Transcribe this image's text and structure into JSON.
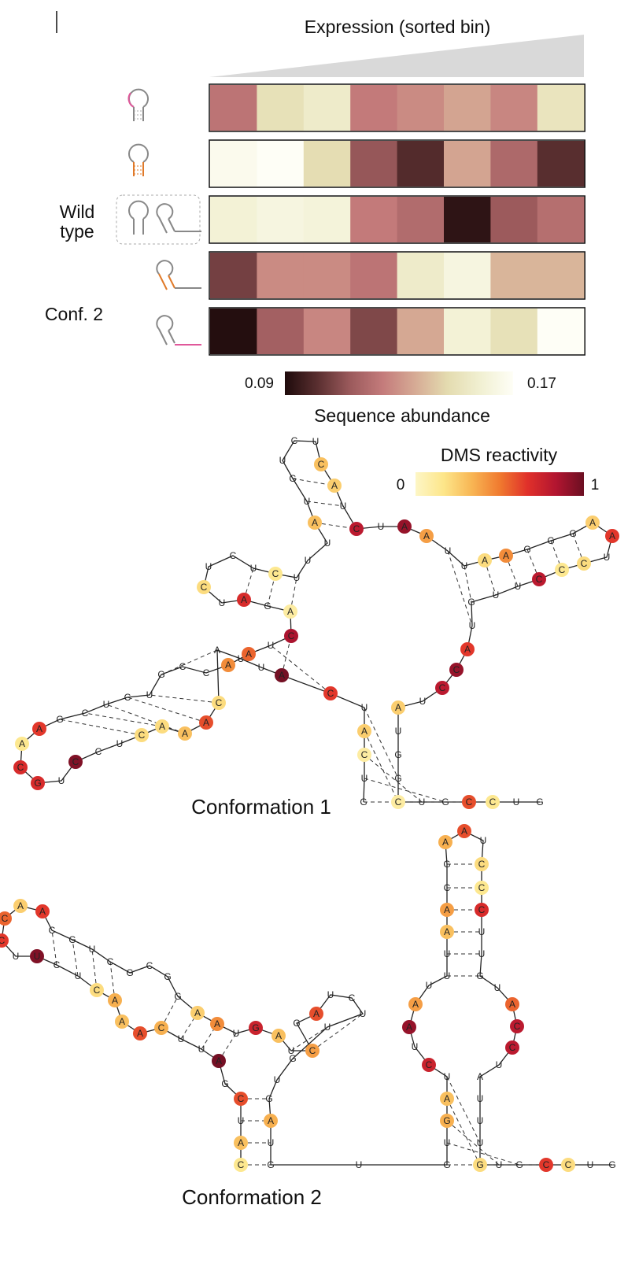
{
  "heatmap": {
    "header": "Expression (sorted bin)",
    "row_labels": {
      "wild_type": "Wild\ntype",
      "conf2": "Conf. 2"
    },
    "rows": [
      {
        "icon": "hairpin-pink-loop-icon",
        "values": [
          0.122,
          0.15,
          0.156,
          0.124,
          0.128,
          0.134,
          0.127,
          0.152
        ]
      },
      {
        "icon": "hairpin-orange-stem-icon",
        "values": [
          0.167,
          0.17,
          0.148,
          0.112,
          0.1,
          0.134,
          0.118,
          0.101
        ]
      },
      {
        "icon": "wild-type-pair-icon",
        "values": [
          0.16,
          0.163,
          0.161,
          0.124,
          0.119,
          0.093,
          0.113,
          0.12
        ]
      },
      {
        "icon": "hairpin-orange-tail-icon",
        "values": [
          0.106,
          0.128,
          0.128,
          0.122,
          0.156,
          0.163,
          0.138,
          0.138
        ]
      },
      {
        "icon": "hairpin-pink-tail-icon",
        "values": [
          0.091,
          0.115,
          0.127,
          0.108,
          0.135,
          0.16,
          0.15,
          0.17
        ]
      }
    ],
    "colorbar": {
      "min_label": "0.09",
      "max_label": "0.17",
      "title": "Sequence abundance",
      "min": 0.09,
      "max": 0.17,
      "stops": [
        "#1f0b0c",
        "#5a2f30",
        "#9b5a5c",
        "#c47b7b",
        "#d6ab95",
        "#e4dcb0",
        "#f1f0d2",
        "#fefef6"
      ]
    }
  },
  "dms": {
    "title": "DMS reactivity",
    "min_label": "0",
    "max_label": "1",
    "stops": [
      "#fdf6c6",
      "#fde68a",
      "#f8b654",
      "#f07a2f",
      "#e0302a",
      "#b21530",
      "#6b0f22"
    ]
  },
  "captions": {
    "conf1": "Conformation 1",
    "conf2": "Conformation 2"
  }
}
